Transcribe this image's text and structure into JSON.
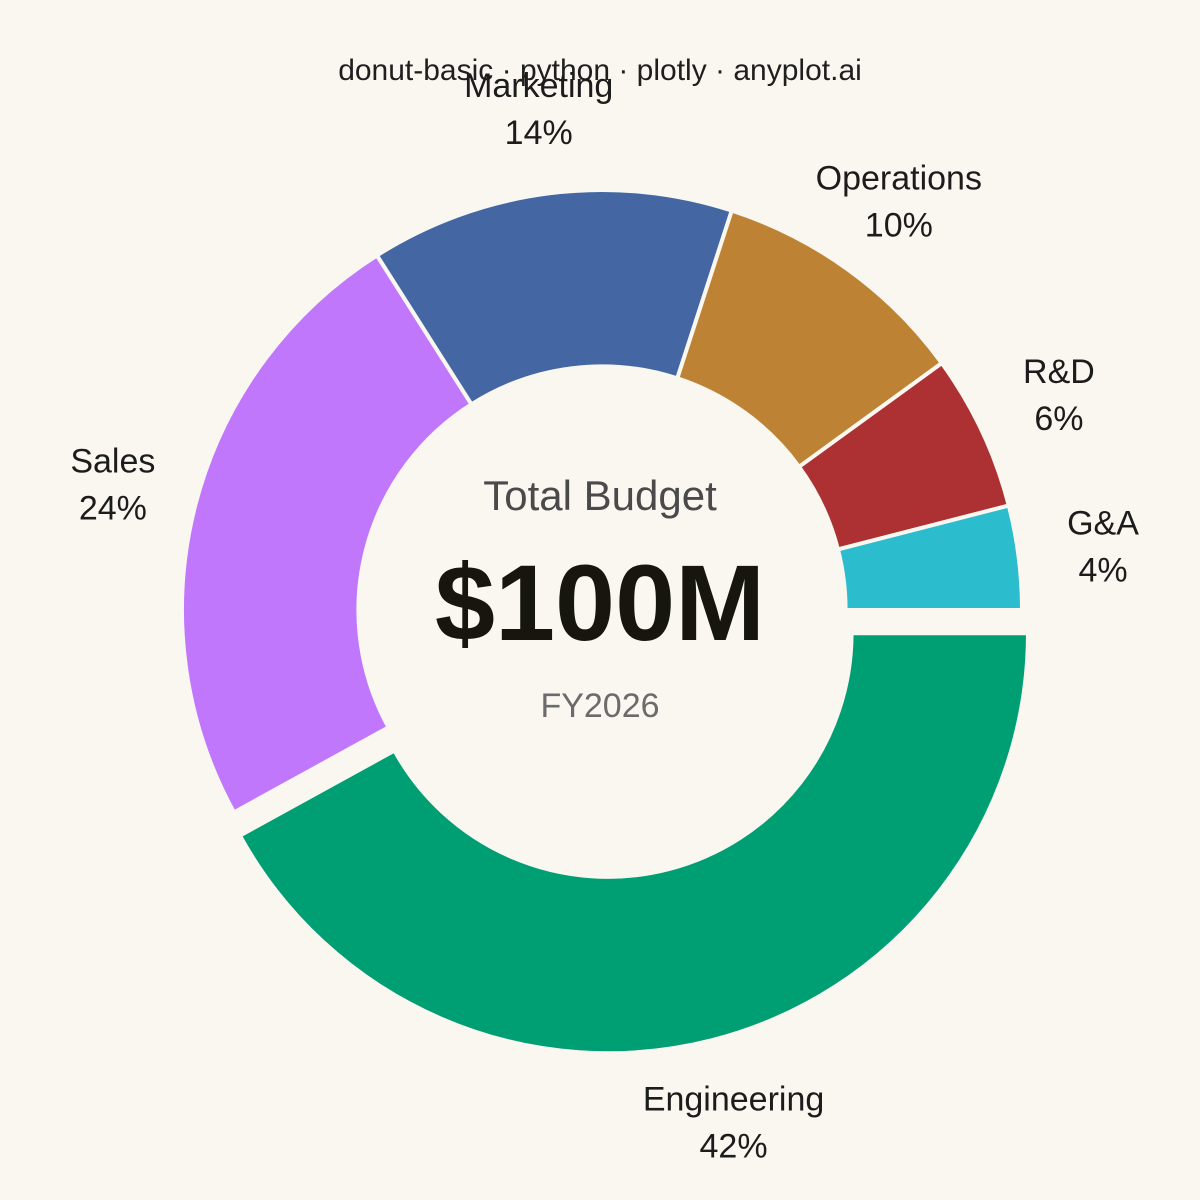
{
  "chart_data": {
    "type": "pie",
    "title": "donut-basic · python · plotly · anyplot.ai",
    "slices": [
      {
        "label": "Engineering",
        "value": 42,
        "color": "#009e73",
        "pulled": true
      },
      {
        "label": "Sales",
        "value": 24,
        "color": "#c077fc",
        "pulled": false
      },
      {
        "label": "Marketing",
        "value": 14,
        "color": "#4467a3",
        "pulled": false
      },
      {
        "label": "Operations",
        "value": 10,
        "color": "#bd8233",
        "pulled": false
      },
      {
        "label": "R&D",
        "value": 6,
        "color": "#ad3033",
        "pulled": false
      },
      {
        "label": "G&A",
        "value": 4,
        "color": "#2bbccd",
        "pulled": false
      }
    ],
    "center": {
      "label": "Total Budget",
      "value": "$100M",
      "sub": "FY2026"
    },
    "hole": 0.58,
    "start": "3 o'clock",
    "direction": "clockwise",
    "legend": "none"
  }
}
